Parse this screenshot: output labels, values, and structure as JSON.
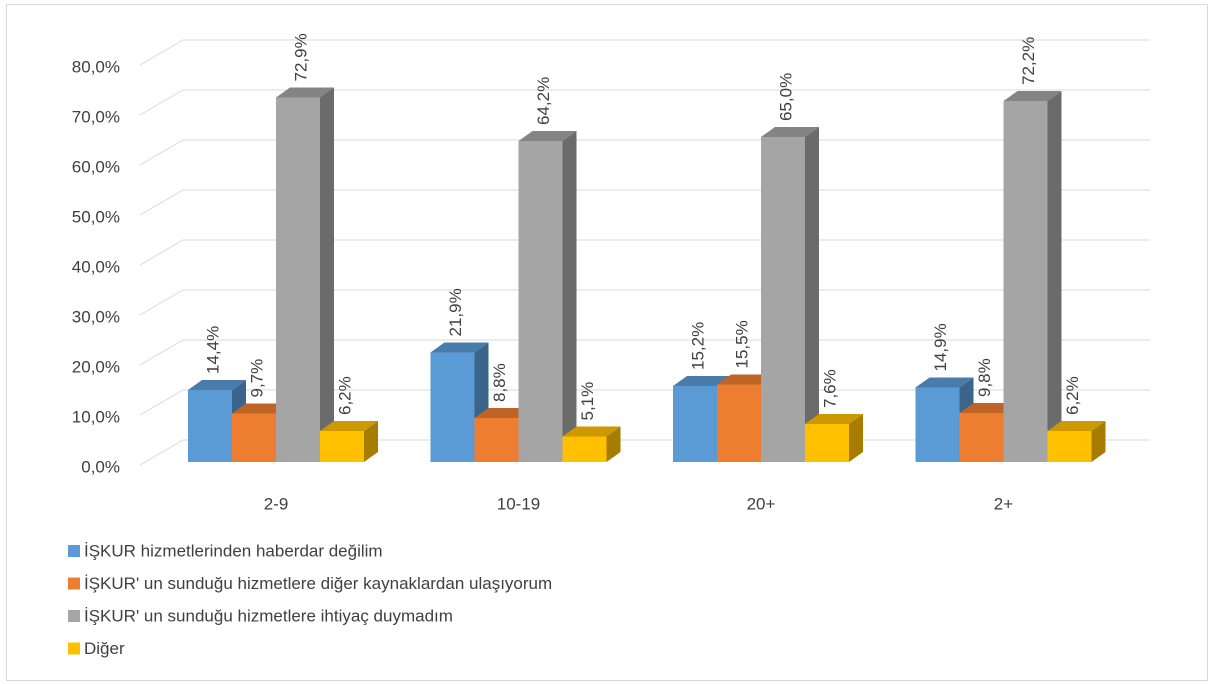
{
  "chart_data": {
    "type": "bar3d",
    "categories": [
      "2-9",
      "10-19",
      "20+",
      "2+"
    ],
    "series": [
      {
        "name": "İŞKUR hizmetlerinden haberdar değilim",
        "color": "#5b9bd5",
        "values": [
          14.4,
          21.9,
          15.2,
          14.9
        ],
        "value_labels": [
          "14,4%",
          "21,9%",
          "15,2%",
          "14,9%"
        ]
      },
      {
        "name": "İŞKUR' un sunduğu hizmetlere diğer kaynaklardan ulaşıyorum",
        "color": "#ed7d31",
        "values": [
          9.7,
          8.8,
          15.5,
          9.8
        ],
        "value_labels": [
          "9,7%",
          "8,8%",
          "15,5%",
          "9,8%"
        ]
      },
      {
        "name": "İŞKUR' un sunduğu hizmetlere ihtiyaç duymadım",
        "color": "#a5a5a5",
        "values": [
          72.9,
          64.2,
          65.0,
          72.2
        ],
        "value_labels": [
          "72,9%",
          "64,2%",
          "65,0%",
          "72,2%"
        ]
      },
      {
        "name": "Diğer",
        "color": "#ffc000",
        "values": [
          6.2,
          5.1,
          7.6,
          6.2
        ],
        "value_labels": [
          "6,2%",
          "5,1%",
          "7,6%",
          "6,2%"
        ]
      }
    ],
    "ylim": [
      0,
      80
    ],
    "yticks": [
      {
        "value": 0,
        "label": "0,0%"
      },
      {
        "value": 10,
        "label": "10,0%"
      },
      {
        "value": 20,
        "label": "20,0%"
      },
      {
        "value": 30,
        "label": "30,0%"
      },
      {
        "value": 40,
        "label": "40,0%"
      },
      {
        "value": 50,
        "label": "50,0%"
      },
      {
        "value": 60,
        "label": "60,0%"
      },
      {
        "value": 70,
        "label": "70,0%"
      },
      {
        "value": 80,
        "label": "80,0%"
      }
    ],
    "grid": true
  }
}
